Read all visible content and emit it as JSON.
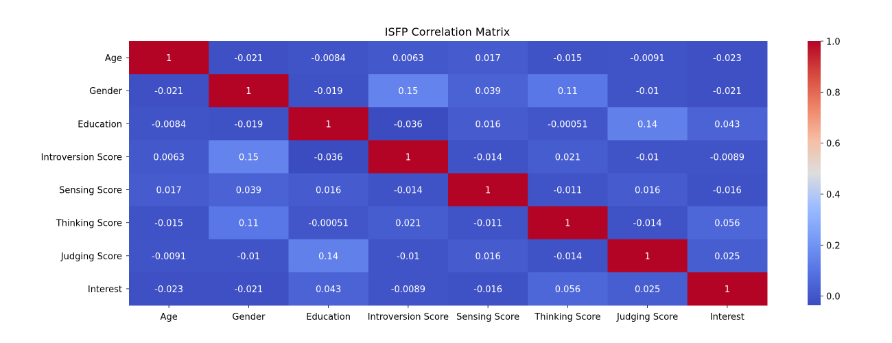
{
  "chart_data": {
    "type": "heatmap",
    "title": "ISFP Correlation Matrix",
    "xlabel": "",
    "ylabel": "",
    "x_labels": [
      "Age",
      "Gender",
      "Education",
      "Introversion Score",
      "Sensing Score",
      "Thinking Score",
      "Judging Score",
      "Interest"
    ],
    "y_labels": [
      "Age",
      "Gender",
      "Education",
      "Introversion Score",
      "Sensing Score",
      "Thinking Score",
      "Judging Score",
      "Interest"
    ],
    "values": [
      [
        1,
        -0.021,
        -0.0084,
        0.0063,
        0.017,
        -0.015,
        -0.0091,
        -0.023
      ],
      [
        -0.021,
        1,
        -0.019,
        0.15,
        0.039,
        0.11,
        -0.01,
        -0.021
      ],
      [
        -0.0084,
        -0.019,
        1,
        -0.036,
        0.016,
        -0.00051,
        0.14,
        0.043
      ],
      [
        0.0063,
        0.15,
        -0.036,
        1,
        -0.014,
        0.021,
        -0.01,
        -0.0089
      ],
      [
        0.017,
        0.039,
        0.016,
        -0.014,
        1,
        -0.011,
        0.016,
        -0.016
      ],
      [
        -0.015,
        0.11,
        -0.00051,
        0.021,
        -0.011,
        1,
        -0.014,
        0.056
      ],
      [
        -0.0091,
        -0.01,
        0.14,
        -0.01,
        0.016,
        -0.014,
        1,
        0.025
      ],
      [
        -0.023,
        -0.021,
        0.043,
        -0.0089,
        -0.016,
        0.056,
        0.025,
        1
      ]
    ],
    "colormap": "coolwarm",
    "vmin": -0.036,
    "vmax": 1,
    "colorbar_ticks": [
      "1.0",
      "0.8",
      "0.6",
      "0.4",
      "0.2",
      "0.0"
    ],
    "colorbar_tick_values": [
      1.0,
      0.8,
      0.6,
      0.4,
      0.2,
      0.0
    ],
    "annotate": true,
    "grid": false
  }
}
